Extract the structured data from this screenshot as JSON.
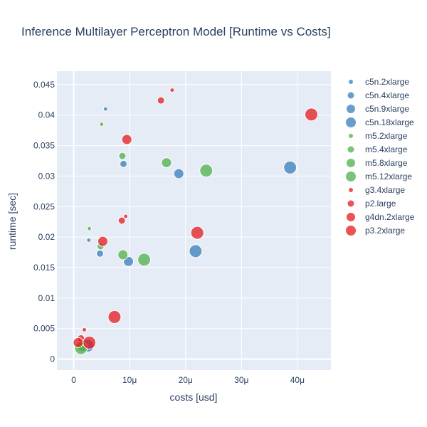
{
  "chart_data": {
    "type": "scatter",
    "title": "Inference Multilayer Perceptron Model [Runtime vs Costs]",
    "xlabel": "costs [usd]",
    "ylabel": "runtime [sec]",
    "xlim": [
      -3e-06,
      4.6e-05
    ],
    "ylim": [
      -0.0018,
      0.0472
    ],
    "x_ticks": [
      {
        "value": 0,
        "label": "0"
      },
      {
        "value": 1e-05,
        "label": "10μ"
      },
      {
        "value": 2e-05,
        "label": "20μ"
      },
      {
        "value": 3e-05,
        "label": "30μ"
      },
      {
        "value": 4e-05,
        "label": "40μ"
      }
    ],
    "y_ticks": [
      {
        "value": 0,
        "label": "0"
      },
      {
        "value": 0.005,
        "label": "0.005"
      },
      {
        "value": 0.01,
        "label": "0.01"
      },
      {
        "value": 0.015,
        "label": "0.015"
      },
      {
        "value": 0.02,
        "label": "0.02"
      },
      {
        "value": 0.025,
        "label": "0.025"
      },
      {
        "value": 0.03,
        "label": "0.03"
      },
      {
        "value": 0.035,
        "label": "0.035"
      },
      {
        "value": 0.04,
        "label": "0.04"
      },
      {
        "value": 0.045,
        "label": "0.045"
      }
    ],
    "grid": true,
    "legend_position": "right",
    "colors": {
      "c5n": "#377eb8",
      "m5": "#4daf4a",
      "p": "#e41a1c",
      "plot_bg": "#e5ecf6",
      "grid": "#ffffff"
    },
    "series": [
      {
        "name": "c5n.2xlarge",
        "family": "c5n",
        "size": 1,
        "points": [
          [
            2.7e-06,
            0.0195
          ],
          [
            5.7e-06,
            0.041
          ],
          [
            2e-06,
            0.0023
          ]
        ]
      },
      {
        "name": "c5n.4xlarge",
        "family": "c5n",
        "size": 2,
        "points": [
          [
            4.7e-06,
            0.0173
          ],
          [
            8.9e-06,
            0.032
          ],
          [
            1.5e-06,
            0.0021
          ]
        ]
      },
      {
        "name": "c5n.9xlarge",
        "family": "c5n",
        "size": 3,
        "points": [
          [
            9.8e-06,
            0.016
          ],
          [
            1.88e-05,
            0.0304
          ]
        ]
      },
      {
        "name": "c5n.18xlarge",
        "family": "c5n",
        "size": 4,
        "points": [
          [
            2.18e-05,
            0.0177
          ],
          [
            3.87e-05,
            0.0314
          ],
          [
            2.5e-06,
            0.0022
          ]
        ]
      },
      {
        "name": "m5.2xlarge",
        "family": "m5",
        "size": 1,
        "points": [
          [
            2.8e-06,
            0.0214
          ],
          [
            5e-06,
            0.0385
          ],
          [
            1.4e-06,
            0.0025
          ]
        ]
      },
      {
        "name": "m5.4xlarge",
        "family": "m5",
        "size": 2,
        "points": [
          [
            4.8e-06,
            0.0185
          ],
          [
            8.7e-06,
            0.0333
          ],
          [
            1.2e-06,
            0.0022
          ]
        ]
      },
      {
        "name": "m5.8xlarge",
        "family": "m5",
        "size": 3,
        "points": [
          [
            8.8e-06,
            0.0171
          ],
          [
            1.66e-05,
            0.0322
          ],
          [
            1.5e-06,
            0.002
          ]
        ]
      },
      {
        "name": "m5.12xlarge",
        "family": "m5",
        "size": 4,
        "points": [
          [
            1.26e-05,
            0.0163
          ],
          [
            2.37e-05,
            0.0309
          ],
          [
            1.3e-06,
            0.0018
          ]
        ]
      },
      {
        "name": "g3.4xlarge",
        "family": "p",
        "size": 1,
        "points": [
          [
            9.3e-06,
            0.0234
          ],
          [
            1.76e-05,
            0.0441
          ],
          [
            1.9e-06,
            0.0048
          ]
        ]
      },
      {
        "name": "p2.large",
        "family": "p",
        "size": 2,
        "points": [
          [
            8.6e-06,
            0.0227
          ],
          [
            1.56e-05,
            0.0424
          ],
          [
            1.3e-06,
            0.0034
          ]
        ]
      },
      {
        "name": "g4dn.2xlarge",
        "family": "p",
        "size": 3,
        "points": [
          [
            5.2e-06,
            0.0193
          ],
          [
            9.5e-06,
            0.036
          ],
          [
            8e-07,
            0.0027
          ]
        ]
      },
      {
        "name": "p3.2xlarge",
        "family": "p",
        "size": 4,
        "points": [
          [
            7.3e-06,
            0.0069
          ],
          [
            2.21e-05,
            0.0207
          ],
          [
            4.25e-05,
            0.0401
          ],
          [
            2.8e-06,
            0.0027
          ]
        ]
      }
    ]
  }
}
